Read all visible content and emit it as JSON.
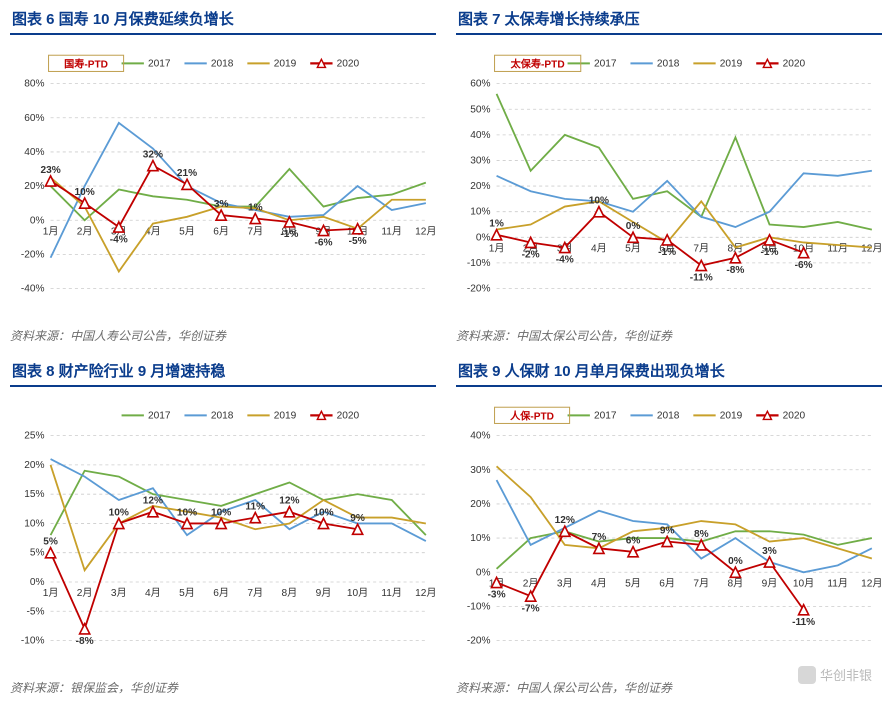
{
  "meta": {
    "months": [
      "1月",
      "2月",
      "3月",
      "4月",
      "5月",
      "6月",
      "7月",
      "8月",
      "9月",
      "10月",
      "11月",
      "12月"
    ],
    "legend_years": [
      "2017",
      "2018",
      "2019",
      "2020"
    ],
    "colors": {
      "y2017": "#70ad47",
      "y2018": "#5b9bd5",
      "y2019": "#c8a02a",
      "y2020": "#c00000",
      "grid": "#cccccc",
      "axis": "#888888",
      "title": "#0a3c8c",
      "source": "#6b6b6b",
      "legend_border": "#c0a050",
      "datalabel": "#333333",
      "tag_text": "#c00000",
      "tag_border": "#c0a050",
      "background": "#ffffff"
    },
    "font": {
      "title_size": 15,
      "tick_size": 10,
      "legend_size": 10,
      "datalabel_size": 10,
      "source_size": 12
    },
    "marker_2020": {
      "shape": "triangle",
      "size": 5,
      "stroke": "#c00000",
      "fill": "#ffffff"
    },
    "line_width": 1.8
  },
  "charts": [
    {
      "id": "chart6",
      "title": "图表 6    国寿 10 月保费延续负增长",
      "tag": "国寿-PTD",
      "source": "资料来源：中国人寿公司公告，华创证券",
      "ylim": [
        -40,
        80
      ],
      "ytick_step": 20,
      "y_format": "percent",
      "series": {
        "y2017": [
          20,
          0,
          18,
          14,
          12,
          8,
          8,
          30,
          8,
          13,
          15,
          22
        ],
        "y2018": [
          -22,
          20,
          57,
          42,
          20,
          10,
          6,
          2,
          3,
          20,
          6,
          10
        ],
        "y2019": [
          25,
          8,
          -30,
          -2,
          2,
          8,
          7,
          0,
          2,
          -5,
          12,
          12
        ],
        "y2020": [
          23,
          10,
          -4,
          32,
          21,
          3,
          1,
          -1,
          -6,
          -5,
          null,
          null
        ]
      },
      "labels_2020": [
        "23%",
        "10%",
        "-4%",
        "32%",
        "21%",
        "3%",
        "1%",
        "-1%",
        "-6%",
        "-5%",
        "",
        ""
      ]
    },
    {
      "id": "chart7",
      "title": "图表 7    太保寿增长持续承压",
      "tag": "太保寿-PTD",
      "source": "资料来源：中国太保公司公告，华创证券",
      "ylim": [
        -20,
        60
      ],
      "ytick_step": 10,
      "y_format": "percent",
      "series": {
        "y2017": [
          56,
          26,
          40,
          35,
          15,
          18,
          8,
          39,
          5,
          4,
          6,
          3
        ],
        "y2018": [
          24,
          18,
          15,
          14,
          10,
          22,
          8,
          4,
          10,
          25,
          24,
          26
        ],
        "y2019": [
          3,
          5,
          12,
          14,
          6,
          -2,
          14,
          -4,
          0,
          -2,
          -3,
          -4
        ],
        "y2020": [
          1,
          -2,
          -4,
          10,
          0,
          -1,
          -11,
          -8,
          -1,
          -6,
          null,
          null
        ]
      },
      "labels_2020": [
        "1%",
        "-2%",
        "-4%",
        "10%",
        "0%",
        "-1%",
        "-11%",
        "-8%",
        "-1%",
        "-6%",
        "",
        ""
      ]
    },
    {
      "id": "chart8",
      "title": "图表 8    财产险行业 9 月增速持稳",
      "tag": "",
      "source": "资料来源：银保监会，华创证券",
      "ylim": [
        -10,
        25
      ],
      "ytick_step": 5,
      "y_format": "percent",
      "series": {
        "y2017": [
          8,
          19,
          18,
          15,
          14,
          13,
          15,
          17,
          14,
          15,
          14,
          8
        ],
        "y2018": [
          21,
          18,
          14,
          16,
          8,
          12,
          14,
          9,
          12,
          10,
          10,
          7
        ],
        "y2019": [
          20,
          2,
          10,
          13,
          12,
          11,
          9,
          10,
          14,
          11,
          11,
          10
        ],
        "y2020": [
          5,
          -8,
          10,
          12,
          10,
          10,
          11,
          12,
          10,
          9,
          null,
          null
        ]
      },
      "labels_2020": [
        "5%",
        "-8%",
        "10%",
        "12%",
        "10%",
        "10%",
        "11%",
        "12%",
        "10%",
        "9%",
        "",
        ""
      ]
    },
    {
      "id": "chart9",
      "title": "图表 9    人保财 10 月单月保费出现负增长",
      "tag": "人保-PTD",
      "source": "资料来源：中国人保公司公告，华创证券",
      "ylim": [
        -20,
        40
      ],
      "ytick_step": 10,
      "y_format": "percent",
      "series": {
        "y2017": [
          1,
          10,
          12,
          9,
          10,
          10,
          9,
          12,
          12,
          11,
          8,
          10
        ],
        "y2018": [
          27,
          8,
          13,
          18,
          15,
          14,
          4,
          10,
          3,
          0,
          2,
          7
        ],
        "y2019": [
          31,
          22,
          8,
          7,
          12,
          13,
          15,
          14,
          9,
          10,
          7,
          4
        ],
        "y2020": [
          -3,
          -7,
          12,
          7,
          6,
          9,
          8,
          0,
          3,
          -11,
          null,
          null
        ]
      },
      "labels_2020": [
        "-3%",
        "-7%",
        "12%",
        "7%",
        "6%",
        "9%",
        "8%",
        "0%",
        "3%",
        "-11%",
        "",
        ""
      ]
    }
  ],
  "watermark": "华创非银"
}
